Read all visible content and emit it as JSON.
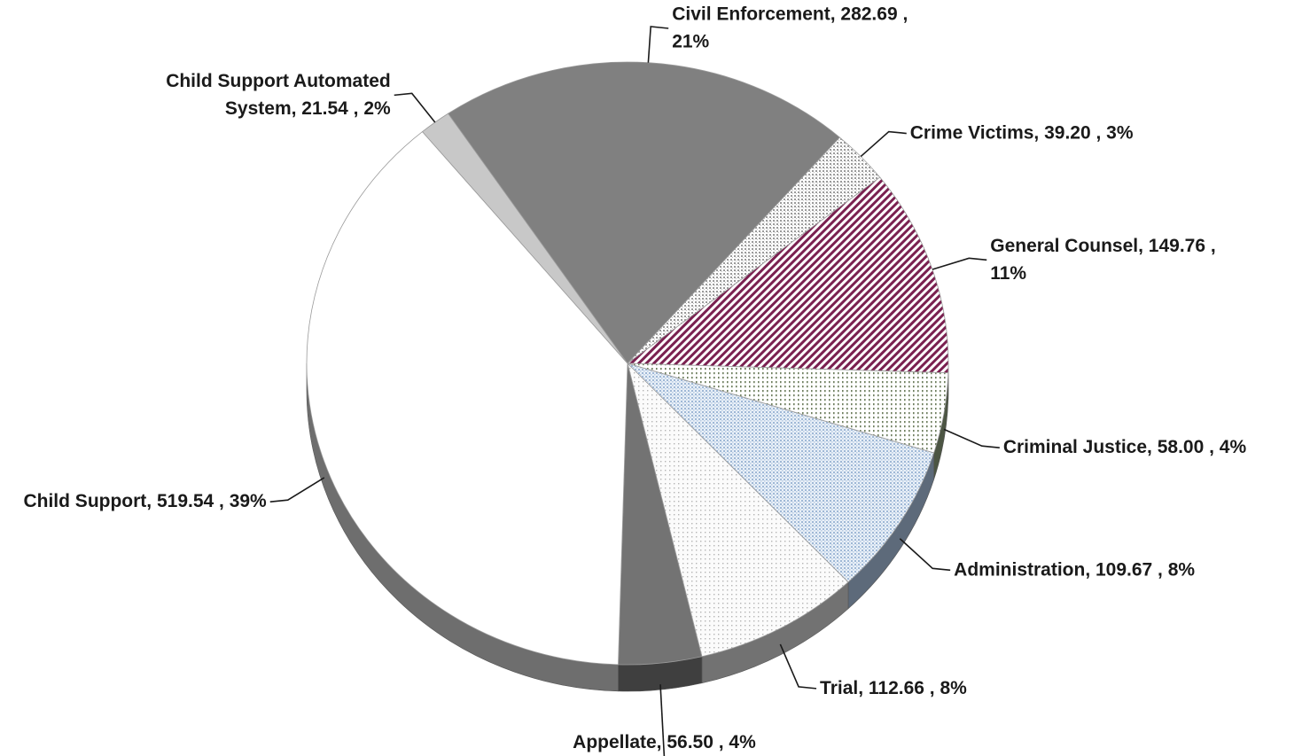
{
  "chart_data": {
    "type": "pie",
    "title": "",
    "three_d": true,
    "slices": [
      {
        "name": "Civil Enforcement",
        "value": 282.69,
        "value_label": "282.69",
        "pct_label": "21%",
        "color": "#808080",
        "pattern": "solid"
      },
      {
        "name": "Crime Victims",
        "value": 39.2,
        "value_label": "39.20",
        "pct_label": "3%",
        "color": "#d6d6d6",
        "pattern": "dots-grey"
      },
      {
        "name": "General Counsel",
        "value": 149.76,
        "value_label": "149.76",
        "pct_label": "11%",
        "color": "#7a2050",
        "pattern": "diagonal-stripes"
      },
      {
        "name": "Criminal Justice",
        "value": 58.0,
        "value_label": "58.00",
        "pct_label": "4%",
        "color": "#8a9a7a",
        "pattern": "dots-green"
      },
      {
        "name": "Administration",
        "value": 109.67,
        "value_label": "109.67",
        "pct_label": "8%",
        "color": "#a9c1de",
        "pattern": "dots-blue"
      },
      {
        "name": "Trial",
        "value": 112.66,
        "value_label": "112.66",
        "pct_label": "8%",
        "color": "#d0d0d0",
        "pattern": "dots-light"
      },
      {
        "name": "Appellate",
        "value": 56.5,
        "value_label": "56.50",
        "pct_label": "4%",
        "color": "#737373",
        "pattern": "solid"
      },
      {
        "name": "Child Support",
        "value": 519.54,
        "value_label": "519.54",
        "pct_label": "39%",
        "color": "#ffffff",
        "pattern": "solid"
      },
      {
        "name": "Child Support Automated System",
        "value": 21.54,
        "value_label": "21.54",
        "pct_label": "2%",
        "color": "#c8c8c8",
        "pattern": "solid"
      }
    ],
    "labels": [
      {
        "lines": [
          "Civil Enforcement,  282.69 ,",
          "21%"
        ]
      },
      {
        "lines": [
          "Crime Victims,  39.20 , 3%"
        ]
      },
      {
        "lines": [
          "General Counsel,  149.76 ,",
          "11%"
        ]
      },
      {
        "lines": [
          "Criminal Justice,  58.00 , 4%"
        ]
      },
      {
        "lines": [
          "Administration,  109.67 , 8%"
        ]
      },
      {
        "lines": [
          "Trial,  112.66 , 8%"
        ]
      },
      {
        "lines": [
          "Appellate,  56.50 , 4%"
        ]
      },
      {
        "lines": [
          "Child Support,  519.54 , 39%"
        ]
      },
      {
        "lines": [
          "Child Support Automated",
          "System,  21.54 , 2%"
        ]
      }
    ]
  }
}
